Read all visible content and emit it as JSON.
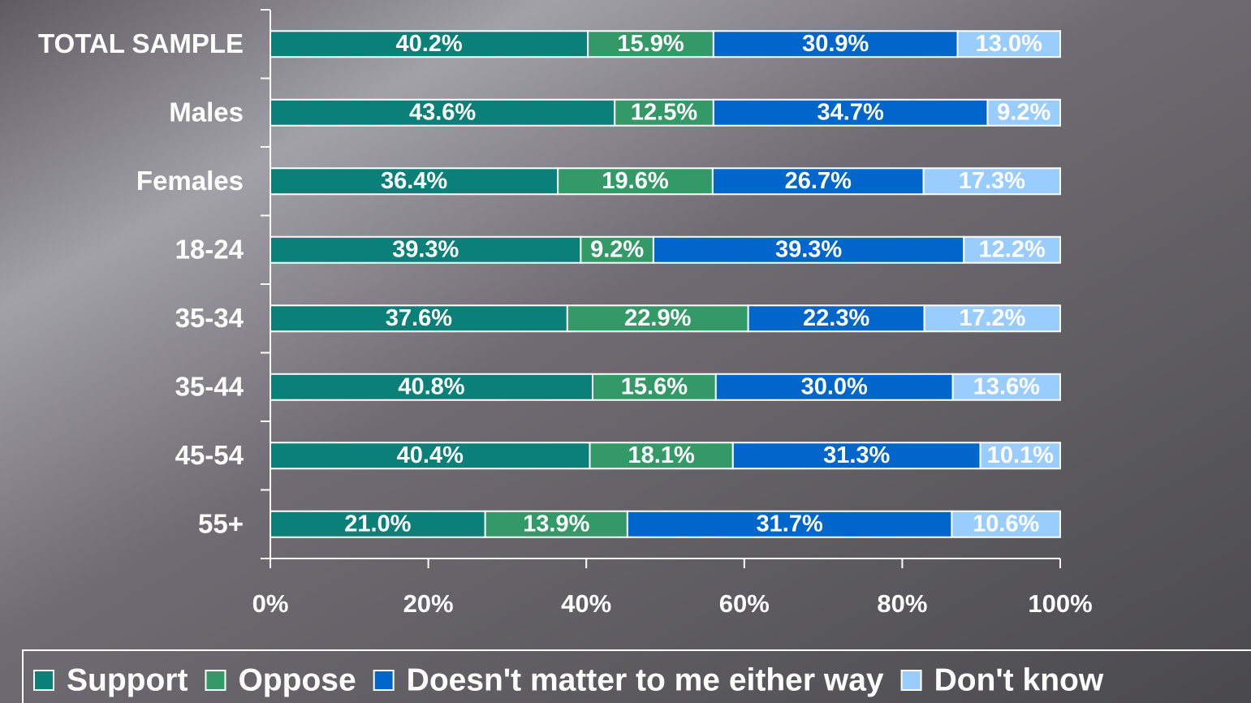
{
  "chart_data": {
    "type": "bar",
    "orientation": "horizontal",
    "stacking": "percent",
    "categories": [
      "TOTAL SAMPLE",
      "Males",
      "Females",
      "18-24",
      "35-34",
      "35-44",
      "45-54",
      "55+"
    ],
    "series": [
      {
        "name": "Support",
        "color": "#0b8078",
        "values": [
          40.2,
          43.6,
          36.4,
          39.3,
          37.6,
          40.8,
          40.4,
          21.0
        ],
        "value_labels": [
          "40.2%",
          "43.6%",
          "36.4%",
          "39.3%",
          "37.6%",
          "40.8%",
          "40.4%",
          "21.0%"
        ]
      },
      {
        "name": "Oppose",
        "color": "#339966",
        "values": [
          15.9,
          12.5,
          19.6,
          9.2,
          22.9,
          15.6,
          18.1,
          13.9
        ],
        "value_labels": [
          "15.9%",
          "12.5%",
          "19.6%",
          "9.2%",
          "22.9%",
          "15.6%",
          "18.1%",
          "13.9%"
        ]
      },
      {
        "name": "Doesn't matter to me either way",
        "color": "#0066cc",
        "values": [
          30.9,
          34.7,
          26.7,
          39.3,
          22.3,
          30.0,
          31.3,
          31.7
        ],
        "value_labels": [
          "30.9%",
          "34.7%",
          "26.7%",
          "39.3%",
          "22.3%",
          "30.0%",
          "31.3%",
          "31.7%"
        ]
      },
      {
        "name": "Don't know",
        "color": "#99ccff",
        "values": [
          13.0,
          9.2,
          17.3,
          12.2,
          17.2,
          13.6,
          10.1,
          10.6
        ],
        "value_labels": [
          "13.0%",
          "9.2%",
          "17.3%",
          "12.2%",
          "17.2%",
          "13.6%",
          "10.1%",
          "10.6%"
        ]
      }
    ],
    "xlim": [
      0,
      100
    ],
    "xticks": [
      {
        "value": 0,
        "label": "0%"
      },
      {
        "value": 20,
        "label": "20%"
      },
      {
        "value": 40,
        "label": "40%"
      },
      {
        "value": 60,
        "label": "60%"
      },
      {
        "value": 80,
        "label": "80%"
      },
      {
        "value": 100,
        "label": "100%"
      }
    ],
    "legend": "bottom"
  }
}
